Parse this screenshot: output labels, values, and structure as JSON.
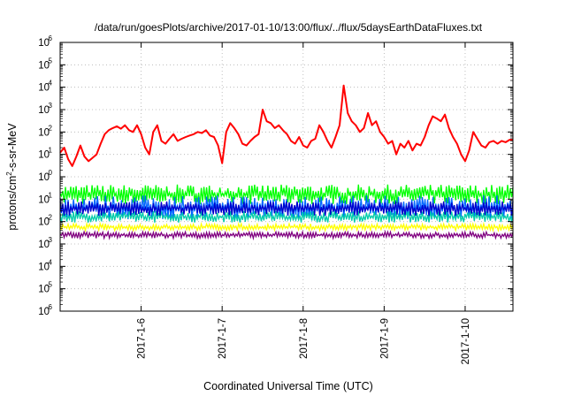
{
  "chart_data": {
    "type": "line",
    "title": "/data/run/goesPlots/archive/2017-01-10/13:00/flux/../flux/5daysEarthDataFluxes.txt",
    "xlabel": "Coordinated Universal Time (UTC)",
    "ylabel": {
      "base": "protons/cm",
      "sup": "2",
      "rest": "-s-sr-MeV"
    },
    "y_scale": "log",
    "ylim": [
      1e-06,
      1000000.0
    ],
    "y_ticks": [
      {
        "exp": "-6",
        "value": 1e-06
      },
      {
        "exp": "-5",
        "value": 1e-05
      },
      {
        "exp": "-4",
        "value": 0.0001
      },
      {
        "exp": "-3",
        "value": 0.001
      },
      {
        "exp": "-2",
        "value": 0.01
      },
      {
        "exp": "-1",
        "value": 0.1
      },
      {
        "exp": "0",
        "value": 1
      },
      {
        "exp": "1",
        "value": 10.0
      },
      {
        "exp": "2",
        "value": 100.0
      },
      {
        "exp": "3",
        "value": 1000.0
      },
      {
        "exp": "4",
        "value": 10000.0
      },
      {
        "exp": "5",
        "value": 100000.0
      },
      {
        "exp": "6",
        "value": 1000000.0
      }
    ],
    "x_range_days": [
      "2017-01-05 00:00",
      "2017-01-10 16:00"
    ],
    "x_ticks": [
      {
        "label": "2017-1-6",
        "day": 1.0
      },
      {
        "label": "2017-1-7",
        "day": 2.0
      },
      {
        "label": "2017-1-8",
        "day": 3.0
      },
      {
        "label": "2017-1-9",
        "day": 4.0
      },
      {
        "label": "2017-1-10",
        "day": 5.0
      }
    ],
    "grid": true,
    "series": [
      {
        "color": "#ff0000",
        "style": "line",
        "points": [
          [
            0.0,
            12
          ],
          [
            0.05,
            20
          ],
          [
            0.1,
            6
          ],
          [
            0.15,
            3
          ],
          [
            0.2,
            8
          ],
          [
            0.25,
            25
          ],
          [
            0.3,
            8
          ],
          [
            0.35,
            5
          ],
          [
            0.4,
            7
          ],
          [
            0.45,
            10
          ],
          [
            0.5,
            30
          ],
          [
            0.55,
            80
          ],
          [
            0.6,
            120
          ],
          [
            0.65,
            150
          ],
          [
            0.7,
            180
          ],
          [
            0.75,
            140
          ],
          [
            0.8,
            200
          ],
          [
            0.85,
            120
          ],
          [
            0.9,
            100
          ],
          [
            0.95,
            200
          ],
          [
            1.0,
            80
          ],
          [
            1.05,
            20
          ],
          [
            1.1,
            10
          ],
          [
            1.15,
            100
          ],
          [
            1.2,
            200
          ],
          [
            1.25,
            40
          ],
          [
            1.3,
            30
          ],
          [
            1.35,
            50
          ],
          [
            1.4,
            80
          ],
          [
            1.45,
            40
          ],
          [
            1.5,
            50
          ],
          [
            1.55,
            60
          ],
          [
            1.6,
            70
          ],
          [
            1.65,
            80
          ],
          [
            1.7,
            100
          ],
          [
            1.75,
            90
          ],
          [
            1.8,
            120
          ],
          [
            1.85,
            70
          ],
          [
            1.9,
            60
          ],
          [
            1.95,
            25
          ],
          [
            2.0,
            4
          ],
          [
            2.05,
            100
          ],
          [
            2.1,
            250
          ],
          [
            2.15,
            150
          ],
          [
            2.2,
            80
          ],
          [
            2.25,
            30
          ],
          [
            2.3,
            25
          ],
          [
            2.35,
            40
          ],
          [
            2.4,
            60
          ],
          [
            2.45,
            80
          ],
          [
            2.5,
            1000
          ],
          [
            2.55,
            300
          ],
          [
            2.6,
            250
          ],
          [
            2.65,
            150
          ],
          [
            2.7,
            200
          ],
          [
            2.75,
            120
          ],
          [
            2.8,
            80
          ],
          [
            2.85,
            40
          ],
          [
            2.9,
            30
          ],
          [
            2.95,
            60
          ],
          [
            3.0,
            25
          ],
          [
            3.05,
            20
          ],
          [
            3.1,
            40
          ],
          [
            3.15,
            50
          ],
          [
            3.2,
            200
          ],
          [
            3.25,
            100
          ],
          [
            3.3,
            40
          ],
          [
            3.35,
            20
          ],
          [
            3.4,
            60
          ],
          [
            3.45,
            200
          ],
          [
            3.5,
            12000
          ],
          [
            3.55,
            700
          ],
          [
            3.6,
            300
          ],
          [
            3.65,
            200
          ],
          [
            3.7,
            100
          ],
          [
            3.75,
            150
          ],
          [
            3.8,
            700
          ],
          [
            3.85,
            200
          ],
          [
            3.9,
            300
          ],
          [
            3.95,
            100
          ],
          [
            4.0,
            60
          ],
          [
            4.05,
            30
          ],
          [
            4.1,
            40
          ],
          [
            4.15,
            10
          ],
          [
            4.2,
            30
          ],
          [
            4.25,
            20
          ],
          [
            4.3,
            40
          ],
          [
            4.35,
            15
          ],
          [
            4.4,
            30
          ],
          [
            4.45,
            25
          ],
          [
            4.5,
            60
          ],
          [
            4.55,
            200
          ],
          [
            4.6,
            500
          ],
          [
            4.65,
            400
          ],
          [
            4.7,
            300
          ],
          [
            4.75,
            600
          ],
          [
            4.8,
            150
          ],
          [
            4.85,
            60
          ],
          [
            4.9,
            30
          ],
          [
            4.95,
            10
          ],
          [
            5.0,
            5
          ],
          [
            5.05,
            15
          ],
          [
            5.1,
            100
          ],
          [
            5.15,
            50
          ],
          [
            5.2,
            25
          ],
          [
            5.25,
            20
          ],
          [
            5.3,
            35
          ],
          [
            5.35,
            40
          ],
          [
            5.4,
            30
          ],
          [
            5.45,
            40
          ],
          [
            5.5,
            35
          ],
          [
            5.55,
            45
          ],
          [
            5.59,
            45
          ]
        ]
      },
      {
        "color": "#00ff00",
        "style": "band",
        "min": 0.06,
        "max": 0.45
      },
      {
        "color": "#0066ff",
        "style": "band",
        "min": 0.012,
        "max": 0.15
      },
      {
        "color": "#00ccaa",
        "style": "band",
        "min": 0.009,
        "max": 0.03
      },
      {
        "color": "#0000cc",
        "style": "band",
        "min": 0.018,
        "max": 0.08
      },
      {
        "color": "#ffff00",
        "style": "band",
        "min": 0.004,
        "max": 0.008
      },
      {
        "color": "#800080",
        "style": "band",
        "min": 0.0018,
        "max": 0.0035
      }
    ]
  }
}
